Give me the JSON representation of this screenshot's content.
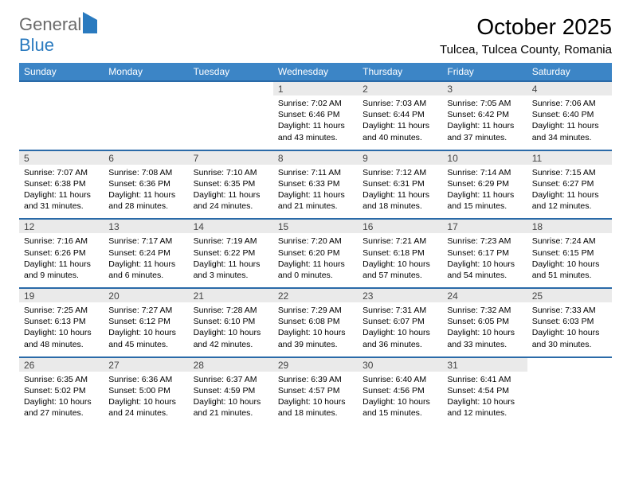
{
  "logo": {
    "text_general": "General",
    "text_blue": "Blue"
  },
  "header": {
    "month_title": "October 2025",
    "location": "Tulcea, Tulcea County, Romania"
  },
  "colors": {
    "header_bg": "#3c85c6",
    "row_separator": "#2a6aa8",
    "daynum_bg": "#eaeaea",
    "logo_gray": "#6a6a6a",
    "logo_blue": "#2a7abf"
  },
  "calendar": {
    "day_labels": [
      "Sunday",
      "Monday",
      "Tuesday",
      "Wednesday",
      "Thursday",
      "Friday",
      "Saturday"
    ],
    "weeks": [
      [
        null,
        null,
        null,
        {
          "n": "1",
          "sunrise": "7:02 AM",
          "sunset": "6:46 PM",
          "daylight": "11 hours and 43 minutes."
        },
        {
          "n": "2",
          "sunrise": "7:03 AM",
          "sunset": "6:44 PM",
          "daylight": "11 hours and 40 minutes."
        },
        {
          "n": "3",
          "sunrise": "7:05 AM",
          "sunset": "6:42 PM",
          "daylight": "11 hours and 37 minutes."
        },
        {
          "n": "4",
          "sunrise": "7:06 AM",
          "sunset": "6:40 PM",
          "daylight": "11 hours and 34 minutes."
        }
      ],
      [
        {
          "n": "5",
          "sunrise": "7:07 AM",
          "sunset": "6:38 PM",
          "daylight": "11 hours and 31 minutes."
        },
        {
          "n": "6",
          "sunrise": "7:08 AM",
          "sunset": "6:36 PM",
          "daylight": "11 hours and 28 minutes."
        },
        {
          "n": "7",
          "sunrise": "7:10 AM",
          "sunset": "6:35 PM",
          "daylight": "11 hours and 24 minutes."
        },
        {
          "n": "8",
          "sunrise": "7:11 AM",
          "sunset": "6:33 PM",
          "daylight": "11 hours and 21 minutes."
        },
        {
          "n": "9",
          "sunrise": "7:12 AM",
          "sunset": "6:31 PM",
          "daylight": "11 hours and 18 minutes."
        },
        {
          "n": "10",
          "sunrise": "7:14 AM",
          "sunset": "6:29 PM",
          "daylight": "11 hours and 15 minutes."
        },
        {
          "n": "11",
          "sunrise": "7:15 AM",
          "sunset": "6:27 PM",
          "daylight": "11 hours and 12 minutes."
        }
      ],
      [
        {
          "n": "12",
          "sunrise": "7:16 AM",
          "sunset": "6:26 PM",
          "daylight": "11 hours and 9 minutes."
        },
        {
          "n": "13",
          "sunrise": "7:17 AM",
          "sunset": "6:24 PM",
          "daylight": "11 hours and 6 minutes."
        },
        {
          "n": "14",
          "sunrise": "7:19 AM",
          "sunset": "6:22 PM",
          "daylight": "11 hours and 3 minutes."
        },
        {
          "n": "15",
          "sunrise": "7:20 AM",
          "sunset": "6:20 PM",
          "daylight": "11 hours and 0 minutes."
        },
        {
          "n": "16",
          "sunrise": "7:21 AM",
          "sunset": "6:18 PM",
          "daylight": "10 hours and 57 minutes."
        },
        {
          "n": "17",
          "sunrise": "7:23 AM",
          "sunset": "6:17 PM",
          "daylight": "10 hours and 54 minutes."
        },
        {
          "n": "18",
          "sunrise": "7:24 AM",
          "sunset": "6:15 PM",
          "daylight": "10 hours and 51 minutes."
        }
      ],
      [
        {
          "n": "19",
          "sunrise": "7:25 AM",
          "sunset": "6:13 PM",
          "daylight": "10 hours and 48 minutes."
        },
        {
          "n": "20",
          "sunrise": "7:27 AM",
          "sunset": "6:12 PM",
          "daylight": "10 hours and 45 minutes."
        },
        {
          "n": "21",
          "sunrise": "7:28 AM",
          "sunset": "6:10 PM",
          "daylight": "10 hours and 42 minutes."
        },
        {
          "n": "22",
          "sunrise": "7:29 AM",
          "sunset": "6:08 PM",
          "daylight": "10 hours and 39 minutes."
        },
        {
          "n": "23",
          "sunrise": "7:31 AM",
          "sunset": "6:07 PM",
          "daylight": "10 hours and 36 minutes."
        },
        {
          "n": "24",
          "sunrise": "7:32 AM",
          "sunset": "6:05 PM",
          "daylight": "10 hours and 33 minutes."
        },
        {
          "n": "25",
          "sunrise": "7:33 AM",
          "sunset": "6:03 PM",
          "daylight": "10 hours and 30 minutes."
        }
      ],
      [
        {
          "n": "26",
          "sunrise": "6:35 AM",
          "sunset": "5:02 PM",
          "daylight": "10 hours and 27 minutes."
        },
        {
          "n": "27",
          "sunrise": "6:36 AM",
          "sunset": "5:00 PM",
          "daylight": "10 hours and 24 minutes."
        },
        {
          "n": "28",
          "sunrise": "6:37 AM",
          "sunset": "4:59 PM",
          "daylight": "10 hours and 21 minutes."
        },
        {
          "n": "29",
          "sunrise": "6:39 AM",
          "sunset": "4:57 PM",
          "daylight": "10 hours and 18 minutes."
        },
        {
          "n": "30",
          "sunrise": "6:40 AM",
          "sunset": "4:56 PM",
          "daylight": "10 hours and 15 minutes."
        },
        {
          "n": "31",
          "sunrise": "6:41 AM",
          "sunset": "4:54 PM",
          "daylight": "10 hours and 12 minutes."
        },
        null
      ]
    ],
    "labels": {
      "sunrise": "Sunrise: ",
      "sunset": "Sunset: ",
      "daylight": "Daylight: "
    }
  }
}
